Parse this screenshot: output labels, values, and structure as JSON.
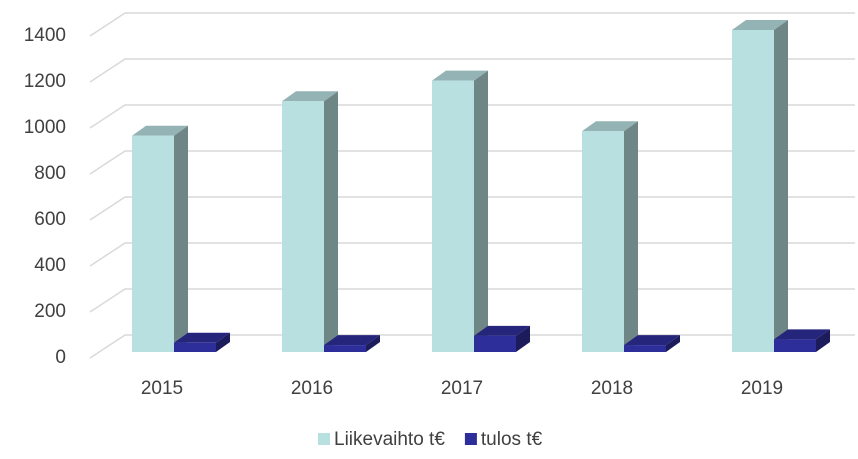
{
  "chart_data": {
    "type": "bar3d",
    "categories": [
      "2015",
      "2016",
      "2017",
      "2018",
      "2019"
    ],
    "series": [
      {
        "name": "Liikevaihto t€",
        "color": "#b9e0e1",
        "values": [
          940,
          1090,
          1180,
          960,
          1400
        ]
      },
      {
        "name": "tulos t€",
        "color": "#2e2e9b",
        "values": [
          40,
          30,
          70,
          30,
          55
        ]
      }
    ],
    "ylim": [
      0,
      1400
    ],
    "yticks": [
      0,
      200,
      400,
      600,
      800,
      1000,
      1200,
      1400
    ],
    "grid": true,
    "legend": "bottom"
  }
}
